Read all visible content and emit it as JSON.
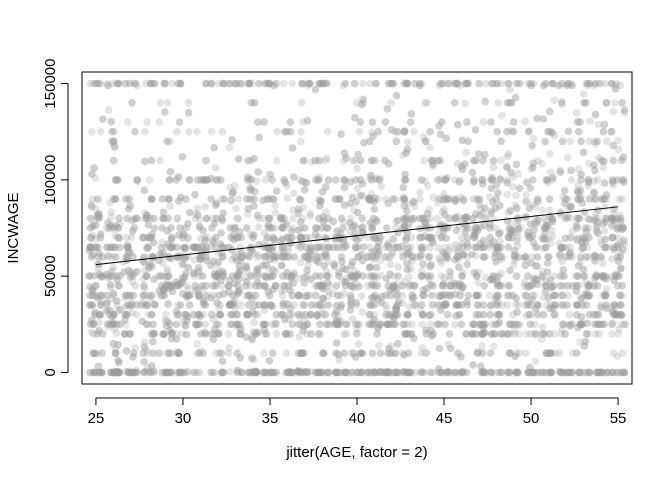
{
  "chart_data": {
    "type": "scatter",
    "title": "",
    "xlabel": "jitter(AGE, factor = 2)",
    "ylabel": "INCWAGE",
    "xlim": [
      24.2,
      55.8
    ],
    "ylim": [
      -6000,
      156000
    ],
    "x_ticks": [
      25,
      30,
      35,
      40,
      45,
      50,
      55
    ],
    "x_tick_labels": [
      "25",
      "30",
      "35",
      "40",
      "45",
      "50",
      "55"
    ],
    "y_ticks": [
      0,
      50000,
      100000,
      150000
    ],
    "y_tick_labels": [
      "0",
      "50000",
      "100000",
      "150000"
    ],
    "box": true,
    "grid": false,
    "point_color": "#9e9e9e",
    "point_opacity": 0.28,
    "line_color": "#000000",
    "scatter_description": "Approximately 5000 jittered observations of ages 25 to 55 and wage income 0 to 150000, densest between 10000 and 70000, with horizontal bands at 0, 150000 and common round values.",
    "regression_line": {
      "x": [
        25,
        55
      ],
      "y": [
        56000,
        86000
      ]
    },
    "age_range": [
      25,
      55
    ],
    "income_mass_points": [
      0,
      10000,
      20000,
      25000,
      30000,
      35000,
      40000,
      45000,
      50000,
      60000,
      65000,
      70000,
      75000,
      80000,
      90000,
      100000,
      110000,
      120000,
      125000,
      130000,
      140000,
      150000
    ]
  }
}
